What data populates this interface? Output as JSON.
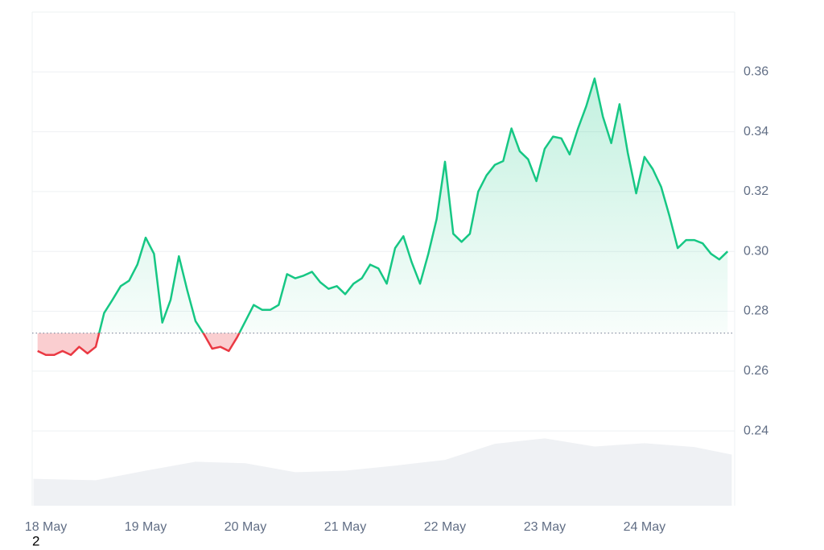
{
  "chart_data": {
    "type": "line",
    "xlim": [
      -3.3,
      165.7
    ],
    "xticks": [
      {
        "value": 0,
        "label": "18 May"
      },
      {
        "value": 24,
        "label": "19 May"
      },
      {
        "value": 48,
        "label": "20 May"
      },
      {
        "value": 72,
        "label": "21 May"
      },
      {
        "value": 96,
        "label": "22 May"
      },
      {
        "value": 120,
        "label": "23 May"
      },
      {
        "value": 144,
        "label": "24 May"
      }
    ],
    "ylim": [
      0.215,
      0.38
    ],
    "yticks": [
      0.24,
      0.26,
      0.28,
      {
        "value": 0.3,
        "label": "0.30"
      },
      0.32,
      0.34,
      0.36
    ],
    "grid": true,
    "reference": 0.2727,
    "up_color": "#16c784",
    "down_color": "#ea3943",
    "x": [
      -2,
      0,
      2,
      4,
      6,
      8,
      10,
      12,
      14,
      16,
      18,
      20,
      22,
      24,
      26,
      28,
      30,
      32,
      34,
      36,
      38,
      40,
      42,
      44,
      46,
      48,
      50,
      52,
      54,
      56,
      58,
      60,
      62,
      64,
      66,
      68,
      70,
      72,
      74,
      76,
      78,
      80,
      82,
      84,
      86,
      88,
      90,
      92,
      94,
      96,
      98,
      100,
      102,
      104,
      106,
      108,
      110,
      112,
      114,
      116,
      118,
      120,
      122,
      124,
      126,
      128,
      130,
      132,
      134,
      136,
      138,
      140,
      142,
      144,
      146,
      148,
      150,
      152,
      154,
      156,
      158,
      160,
      162,
      164
    ],
    "values": [
      0.2667,
      0.2654,
      0.2654,
      0.2667,
      0.2654,
      0.2681,
      0.2659,
      0.2681,
      0.2794,
      0.2838,
      0.2884,
      0.2902,
      0.2956,
      0.3046,
      0.2992,
      0.2762,
      0.2838,
      0.2984,
      0.287,
      0.2767,
      0.2724,
      0.2675,
      0.2681,
      0.2667,
      0.2713,
      0.2767,
      0.2821,
      0.2805,
      0.2805,
      0.2821,
      0.2924,
      0.291,
      0.2919,
      0.2932,
      0.2897,
      0.2875,
      0.2884,
      0.2857,
      0.2892,
      0.291,
      0.2956,
      0.2943,
      0.2892,
      0.3011,
      0.3051,
      0.2964,
      0.2892,
      0.2992,
      0.3108,
      0.33,
      0.3059,
      0.3032,
      0.3059,
      0.32,
      0.3254,
      0.3289,
      0.3302,
      0.3411,
      0.3335,
      0.3308,
      0.3235,
      0.3343,
      0.3384,
      0.3378,
      0.3324,
      0.3411,
      0.3486,
      0.3578,
      0.3451,
      0.3362,
      0.3492,
      0.3329,
      0.3194,
      0.3316,
      0.3275,
      0.3216,
      0.3119,
      0.3011,
      0.3038,
      0.3038,
      0.3027,
      0.2992,
      0.2973,
      0.3
    ],
    "volume": {
      "color": "#eff1f4",
      "x": [
        -3,
        12,
        24,
        36,
        48,
        60,
        72,
        84,
        96,
        108,
        120,
        132,
        144,
        156,
        165
      ],
      "values": [
        0.224,
        0.2235,
        0.2267,
        0.2297,
        0.2292,
        0.2262,
        0.2267,
        0.2284,
        0.2303,
        0.2357,
        0.2375,
        0.2348,
        0.2359,
        0.2346,
        0.2321
      ]
    },
    "footnote": "2"
  }
}
